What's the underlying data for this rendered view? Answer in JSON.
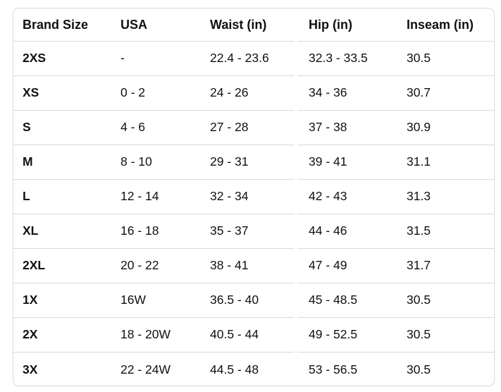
{
  "table": {
    "columns": {
      "brand_size": "Brand Size",
      "usa": "USA",
      "waist": "Waist (in)",
      "hip": "Hip (in)",
      "inseam": "Inseam (in)"
    },
    "rows": [
      {
        "brand_size": "2XS",
        "usa": "-",
        "waist": "22.4 - 23.6",
        "hip": "32.3 - 33.5",
        "inseam": "30.5"
      },
      {
        "brand_size": "XS",
        "usa": "0 - 2",
        "waist": "24 - 26",
        "hip": "34 - 36",
        "inseam": "30.7"
      },
      {
        "brand_size": "S",
        "usa": "4 - 6",
        "waist": "27 - 28",
        "hip": "37 - 38",
        "inseam": "30.9"
      },
      {
        "brand_size": "M",
        "usa": "8 - 10",
        "waist": "29 - 31",
        "hip": "39 - 41",
        "inseam": "31.1"
      },
      {
        "brand_size": "L",
        "usa": "12 - 14",
        "waist": "32 - 34",
        "hip": "42 - 43",
        "inseam": "31.3"
      },
      {
        "brand_size": "XL",
        "usa": "16 - 18",
        "waist": "35 - 37",
        "hip": "44 - 46",
        "inseam": "31.5"
      },
      {
        "brand_size": "2XL",
        "usa": "20 - 22",
        "waist": "38 - 41",
        "hip": "47 - 49",
        "inseam": "31.7"
      },
      {
        "brand_size": "1X",
        "usa": "16W",
        "waist": "36.5 - 40",
        "hip": "45 - 48.5",
        "inseam": "30.5"
      },
      {
        "brand_size": "2X",
        "usa": "18 - 20W",
        "waist": "40.5 - 44",
        "hip": "49 - 52.5",
        "inseam": "30.5"
      },
      {
        "brand_size": "3X",
        "usa": "22 - 24W",
        "waist": "44.5 - 48",
        "hip": "53 - 56.5",
        "inseam": "30.5"
      }
    ],
    "colors": {
      "border": "#d5d9d9",
      "row_separator": "#d9d9d9",
      "text": "#0f1111",
      "background": "#ffffff"
    }
  }
}
